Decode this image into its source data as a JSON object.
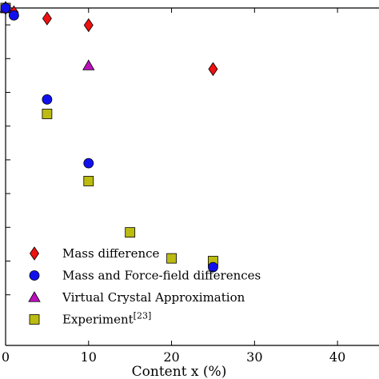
{
  "chart_data": {
    "type": "scatter",
    "xlabel": "Content x (%)",
    "ylabel": "",
    "xlim": [
      0,
      45
    ],
    "ylim": [
      0,
      1
    ],
    "x_ticks": [
      0,
      10,
      20,
      30,
      40
    ],
    "x_tick_labels": [
      "0",
      "10",
      "20",
      "30",
      "40"
    ],
    "y_ticks": [
      0.95,
      0.85,
      0.75,
      0.65,
      0.55,
      0.45,
      0.35,
      0.25,
      0.15
    ],
    "legend_position": "bottom-left",
    "series": [
      {
        "name": "Mass difference",
        "marker": "diamond",
        "color": "#ee1111",
        "x": [
          0,
          1,
          5,
          10,
          25
        ],
        "y": [
          1.0,
          0.987,
          0.969,
          0.949,
          0.819
        ]
      },
      {
        "name": "Mass and Force-field differences",
        "marker": "circle",
        "color": "#1111ee",
        "x": [
          0,
          1,
          5,
          10,
          25
        ],
        "y": [
          1.0,
          0.978,
          0.729,
          0.54,
          0.232
        ]
      },
      {
        "name": "Virtual Crystal Approximation",
        "marker": "triangle",
        "color": "#bb11bb",
        "x": [
          0,
          10
        ],
        "y": [
          1.0,
          0.829
        ]
      },
      {
        "name": "Experiment",
        "name_superscript": "[23]",
        "marker": "square",
        "color": "#bbbb11",
        "x": [
          0,
          5,
          10,
          15,
          20,
          25
        ],
        "y": [
          1.0,
          0.686,
          0.487,
          0.335,
          0.258,
          0.25
        ]
      }
    ]
  }
}
